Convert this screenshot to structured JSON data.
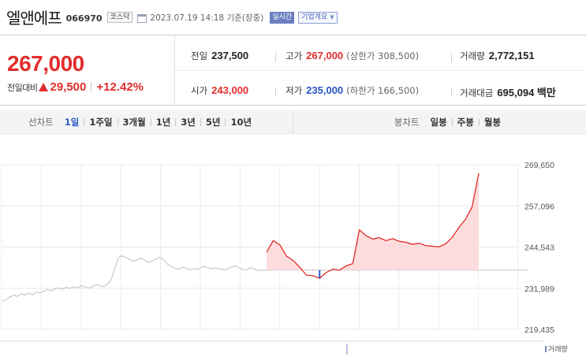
{
  "header": {
    "stock_name": "엘앤에프",
    "stock_code": "066970",
    "market": "코스닥",
    "timestamp": "2023.07.19 14:18  기준(장중)",
    "realtime_label": "실시간",
    "company_info_label": "기업개요",
    "company_info_caret": "▼"
  },
  "quote": {
    "current_price": "267,000",
    "change_label": "전일대비",
    "change_amount": "29,500",
    "change_pct": "+12.42%",
    "prev_close": {
      "label": "전일",
      "value": "237,500"
    },
    "high": {
      "label": "고가",
      "value": "267,000",
      "sub": "(상한가 308,500)"
    },
    "volume": {
      "label": "거래량",
      "value": "2,772,151"
    },
    "open": {
      "label": "시가",
      "value": "243,000"
    },
    "low": {
      "label": "저가",
      "value": "235,000",
      "sub": "(하한가 166,500)"
    },
    "trade_value": {
      "label": "거래대금",
      "value": "695,094 백만"
    }
  },
  "colors": {
    "up": "#e22d2d",
    "down": "#2a56c6",
    "accent": "#6b7fc0",
    "intraday_fill": "#fcdcdc",
    "history_line": "#c8c8c8"
  },
  "period_bar": {
    "line_chart_title": "선차트",
    "line_periods": [
      "1일",
      "1주일",
      "3개월",
      "1년",
      "3년",
      "5년",
      "10년"
    ],
    "active_period": "1일",
    "candle_chart_title": "봉차트",
    "candle_periods": [
      "일봉",
      "주봉",
      "월봉"
    ]
  },
  "chart_data": {
    "type": "line",
    "y_ticks": [
      "269,650",
      "257,096",
      "244,543",
      "231,989",
      "219,435"
    ],
    "ylim": [
      219435,
      269650
    ],
    "grid": true,
    "prev_close": 237500,
    "history_values": [
      228000,
      228600,
      229300,
      229900,
      229500,
      230300,
      229900,
      230500,
      230000,
      230800,
      230600,
      231000,
      231600,
      231200,
      231800,
      232100,
      231700,
      232300,
      231900,
      232500,
      232000,
      232800,
      232400,
      232000,
      232600,
      233100,
      232800,
      232500,
      233200,
      234600,
      238200,
      241500,
      241900,
      241300,
      240800,
      240200,
      240700,
      241200,
      240500,
      239800,
      240400,
      240900,
      241500,
      240600,
      239300,
      238700,
      238000,
      237800,
      238400,
      238100,
      237600,
      238000,
      237700,
      238300,
      238600,
      238200,
      237900,
      238200,
      237800,
      237600,
      237900,
      238400,
      238800,
      238300,
      237700,
      237600,
      238200,
      238000,
      237400,
      237500,
      237500
    ],
    "intraday_values": [
      243000,
      246500,
      245200,
      241800,
      240500,
      238400,
      236000,
      235800,
      235000,
      236800,
      237800,
      237500,
      238800,
      239500,
      249800,
      248000,
      247000,
      247400,
      246500,
      247100,
      246300,
      246000,
      245400,
      245700,
      245000,
      244800,
      244600,
      245500,
      247500,
      250500,
      253000,
      256800,
      267000
    ],
    "intraday_low_value": 235000,
    "volume_label": "거래량"
  }
}
